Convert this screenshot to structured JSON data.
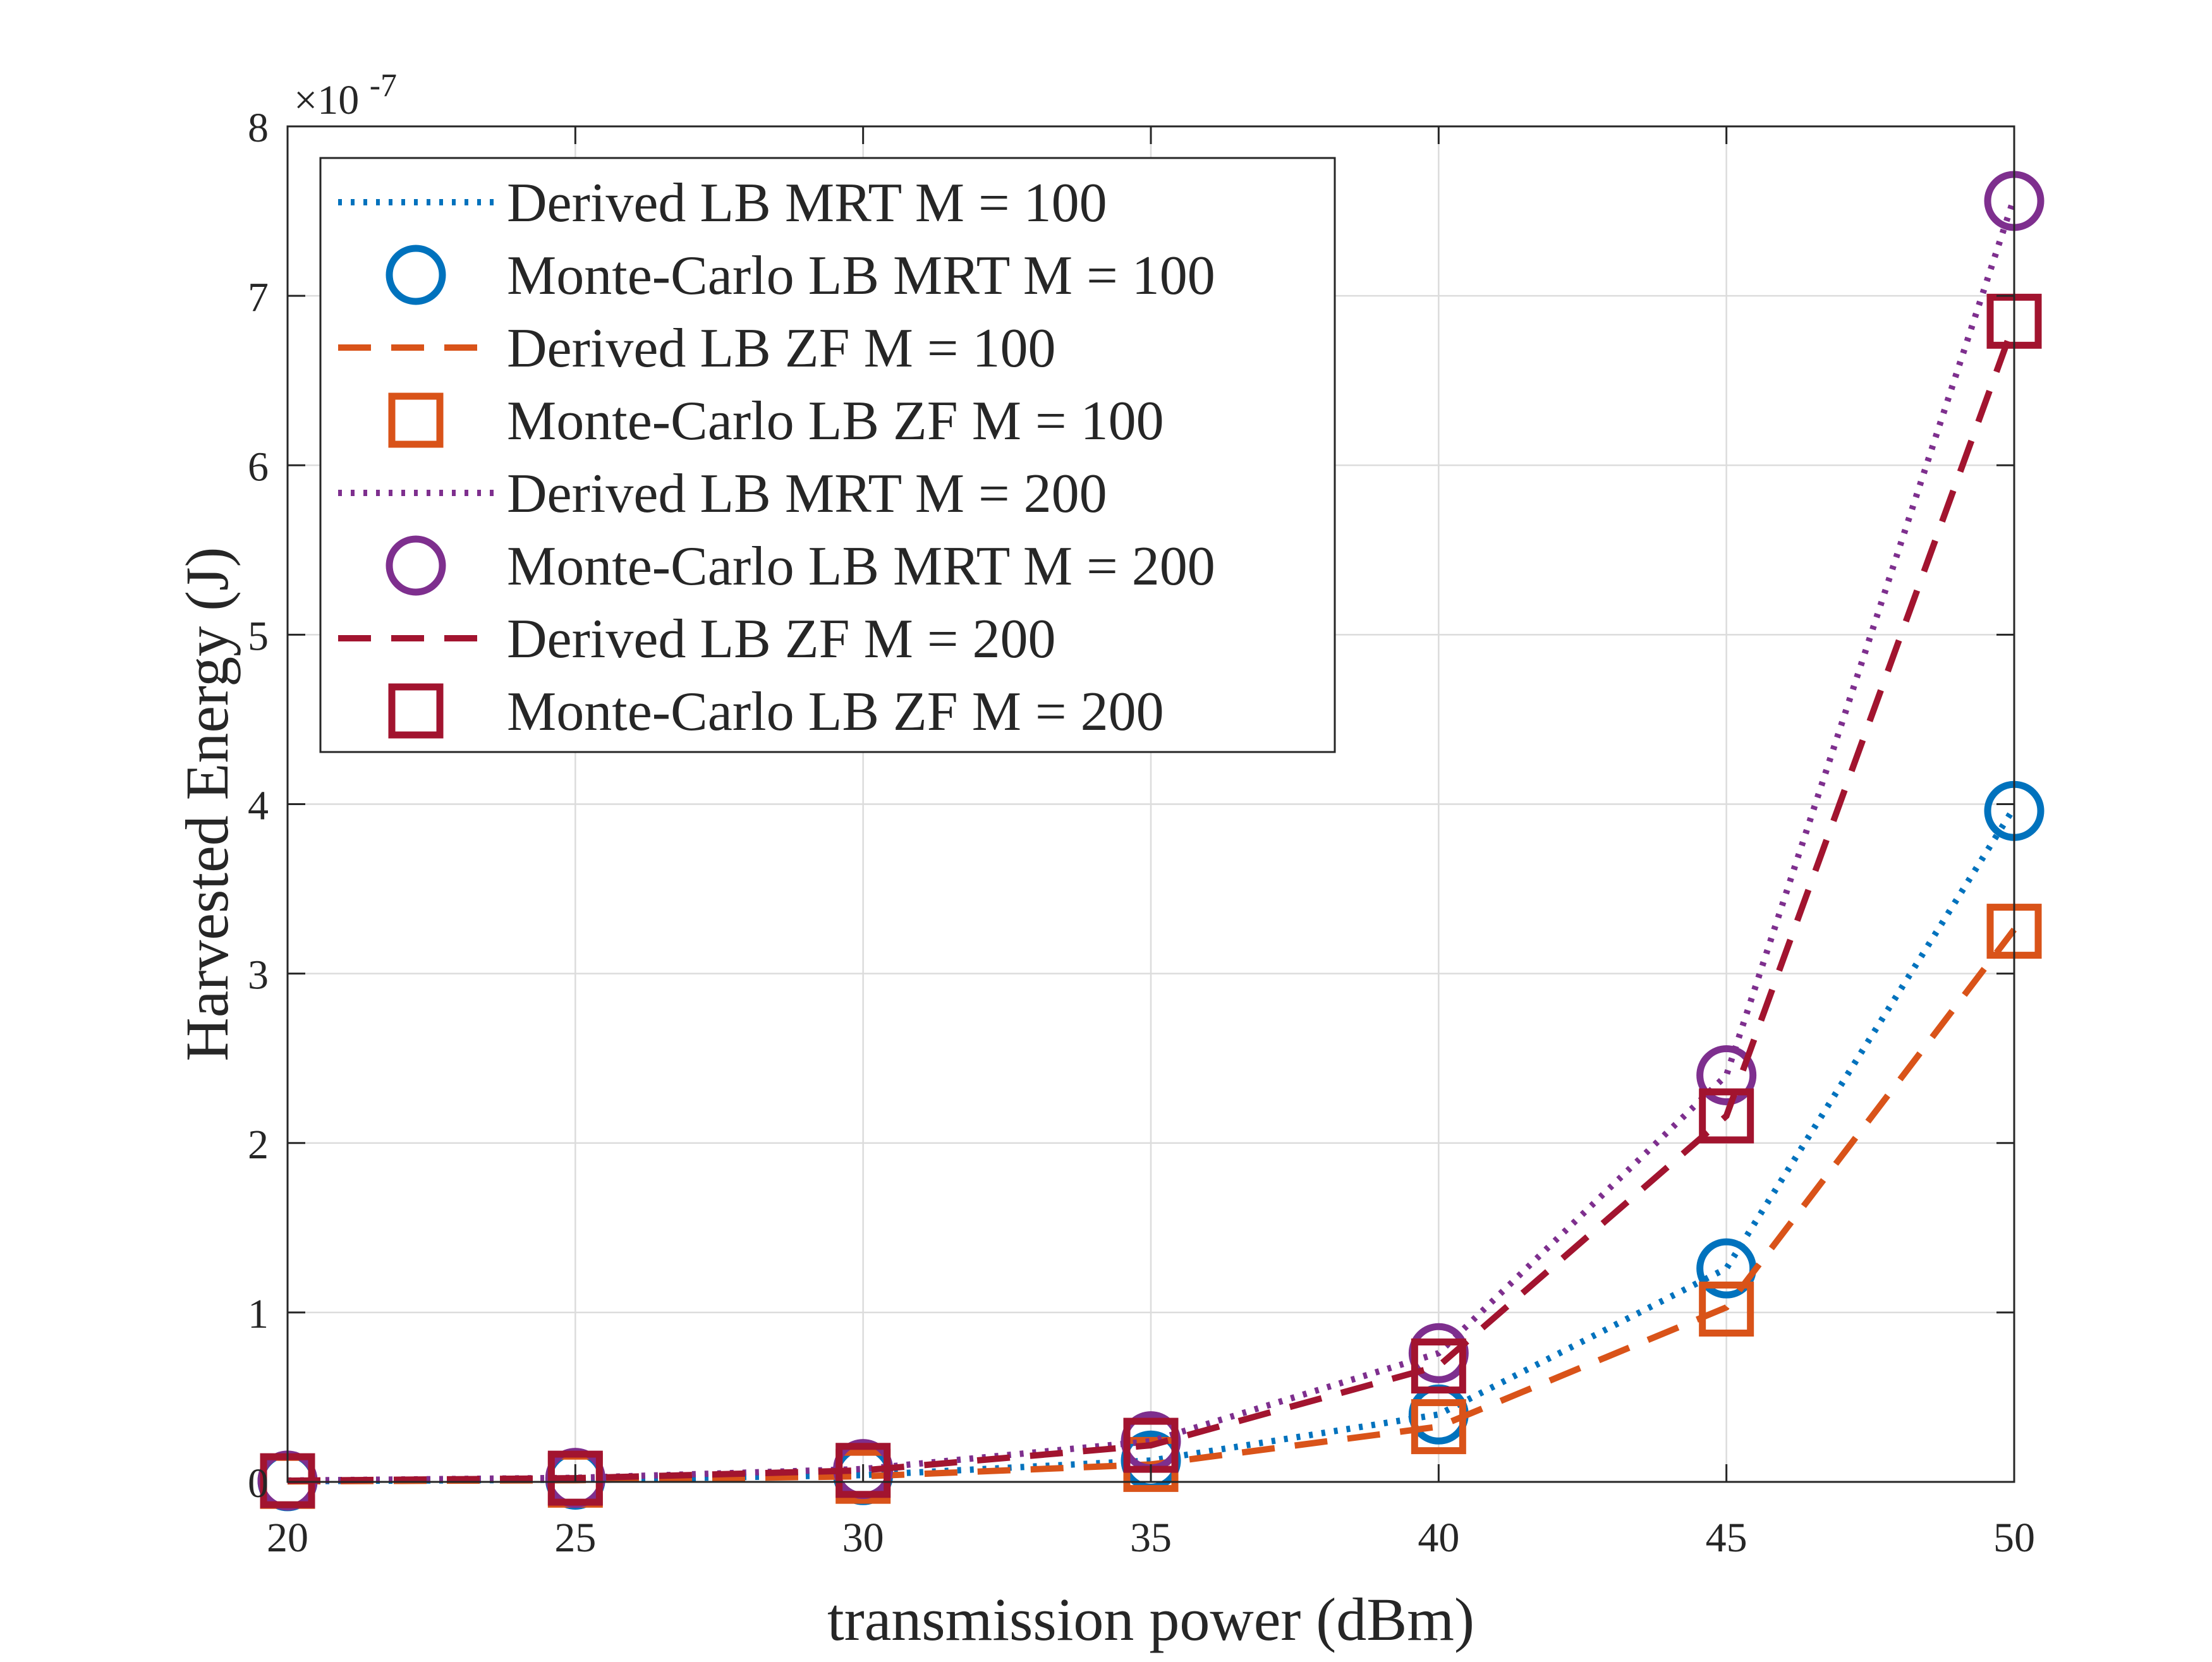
{
  "chart_data": {
    "type": "line",
    "title": "",
    "xlabel": "transmission power (dBm)",
    "ylabel": "Harvested Energy (J)",
    "y_exponent_base": "×10",
    "y_exponent_power": "-7",
    "x": [
      20,
      25,
      30,
      35,
      40,
      45,
      50
    ],
    "xlim": [
      20,
      50
    ],
    "ylim": [
      0,
      8
    ],
    "xticks": [
      20,
      25,
      30,
      35,
      40,
      45,
      50
    ],
    "yticks": [
      0,
      1,
      2,
      3,
      4,
      5,
      6,
      7,
      8
    ],
    "grid": true,
    "legend_position": "top-left",
    "series": [
      {
        "name": "Derived LB MRT M = 100",
        "style": "dotted",
        "color": "#0072BD",
        "values": [
          0.004,
          0.013,
          0.04,
          0.126,
          0.398,
          1.26,
          3.98
        ]
      },
      {
        "name": "Monte-Carlo LB MRT M = 100",
        "style": "circle",
        "color": "#0072BD",
        "values": [
          0.004,
          0.013,
          0.04,
          0.126,
          0.398,
          1.26,
          3.96
        ]
      },
      {
        "name": "Derived LB ZF M = 100",
        "style": "dashed",
        "color": "#D95319",
        "values": [
          0.003,
          0.01,
          0.033,
          0.103,
          0.326,
          1.03,
          3.26
        ]
      },
      {
        "name": "Monte-Carlo LB ZF M = 100",
        "style": "square",
        "color": "#D95319",
        "values": [
          0.003,
          0.01,
          0.033,
          0.103,
          0.326,
          1.02,
          3.25
        ]
      },
      {
        "name": "Derived LB MRT M = 200",
        "style": "dotted",
        "color": "#7E2F8E",
        "values": [
          0.008,
          0.024,
          0.076,
          0.24,
          0.76,
          2.4,
          7.58
        ]
      },
      {
        "name": "Monte-Carlo LB MRT M = 200",
        "style": "circle",
        "color": "#7E2F8E",
        "values": [
          0.008,
          0.024,
          0.076,
          0.24,
          0.76,
          2.4,
          7.56
        ]
      },
      {
        "name": "Derived LB ZF M = 200",
        "style": "dashed",
        "color": "#A2142F",
        "values": [
          0.007,
          0.022,
          0.068,
          0.216,
          0.684,
          2.16,
          6.84
        ]
      },
      {
        "name": "Monte-Carlo LB ZF M = 200",
        "style": "square",
        "color": "#A2142F",
        "values": [
          0.007,
          0.022,
          0.068,
          0.216,
          0.684,
          2.16,
          6.85
        ]
      }
    ]
  }
}
